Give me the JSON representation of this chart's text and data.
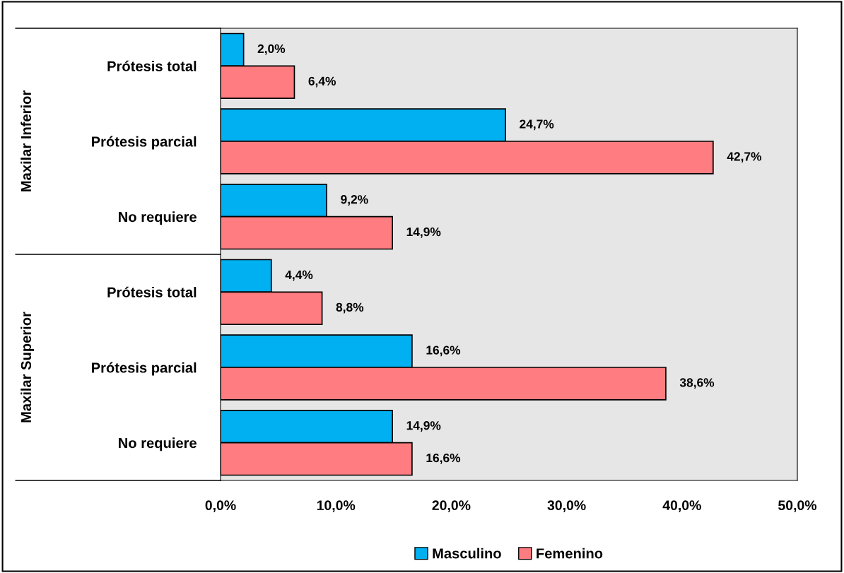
{
  "chart_data": {
    "type": "bar",
    "orientation": "horizontal",
    "categories": [
      "Prótesis total",
      "Prótesis parcial",
      "No requiere",
      "Prótesis total",
      "Prótesis parcial",
      "No requiere"
    ],
    "series": [
      {
        "name": "Masculino",
        "color": "#00b0f0",
        "values": [
          2.0,
          24.7,
          9.2,
          4.4,
          16.6,
          14.9
        ],
        "value_labels": [
          "2,0%",
          "24,7%",
          "9,2%",
          "4,4%",
          "16,6%",
          "14,9%"
        ]
      },
      {
        "name": "Femenino",
        "color": "#ff7c80",
        "values": [
          6.4,
          42.7,
          14.9,
          8.8,
          38.6,
          16.6
        ],
        "value_labels": [
          "6,4%",
          "42,7%",
          "14,9%",
          "8,8%",
          "38,6%",
          "16,6%"
        ]
      }
    ],
    "annotations": [
      "Maxilar Inferior",
      "Maxilar Superior"
    ],
    "xlim": [
      0,
      50
    ],
    "xticks": [
      {
        "value": 0,
        "label": "0,0%"
      },
      {
        "value": 10,
        "label": "10,0%"
      },
      {
        "value": 20,
        "label": "20,0%"
      },
      {
        "value": 30,
        "label": "30,0%"
      },
      {
        "value": 40,
        "label": "40,0%"
      },
      {
        "value": 50,
        "label": "50,0%"
      }
    ],
    "grid": false,
    "legend": "bottom"
  }
}
